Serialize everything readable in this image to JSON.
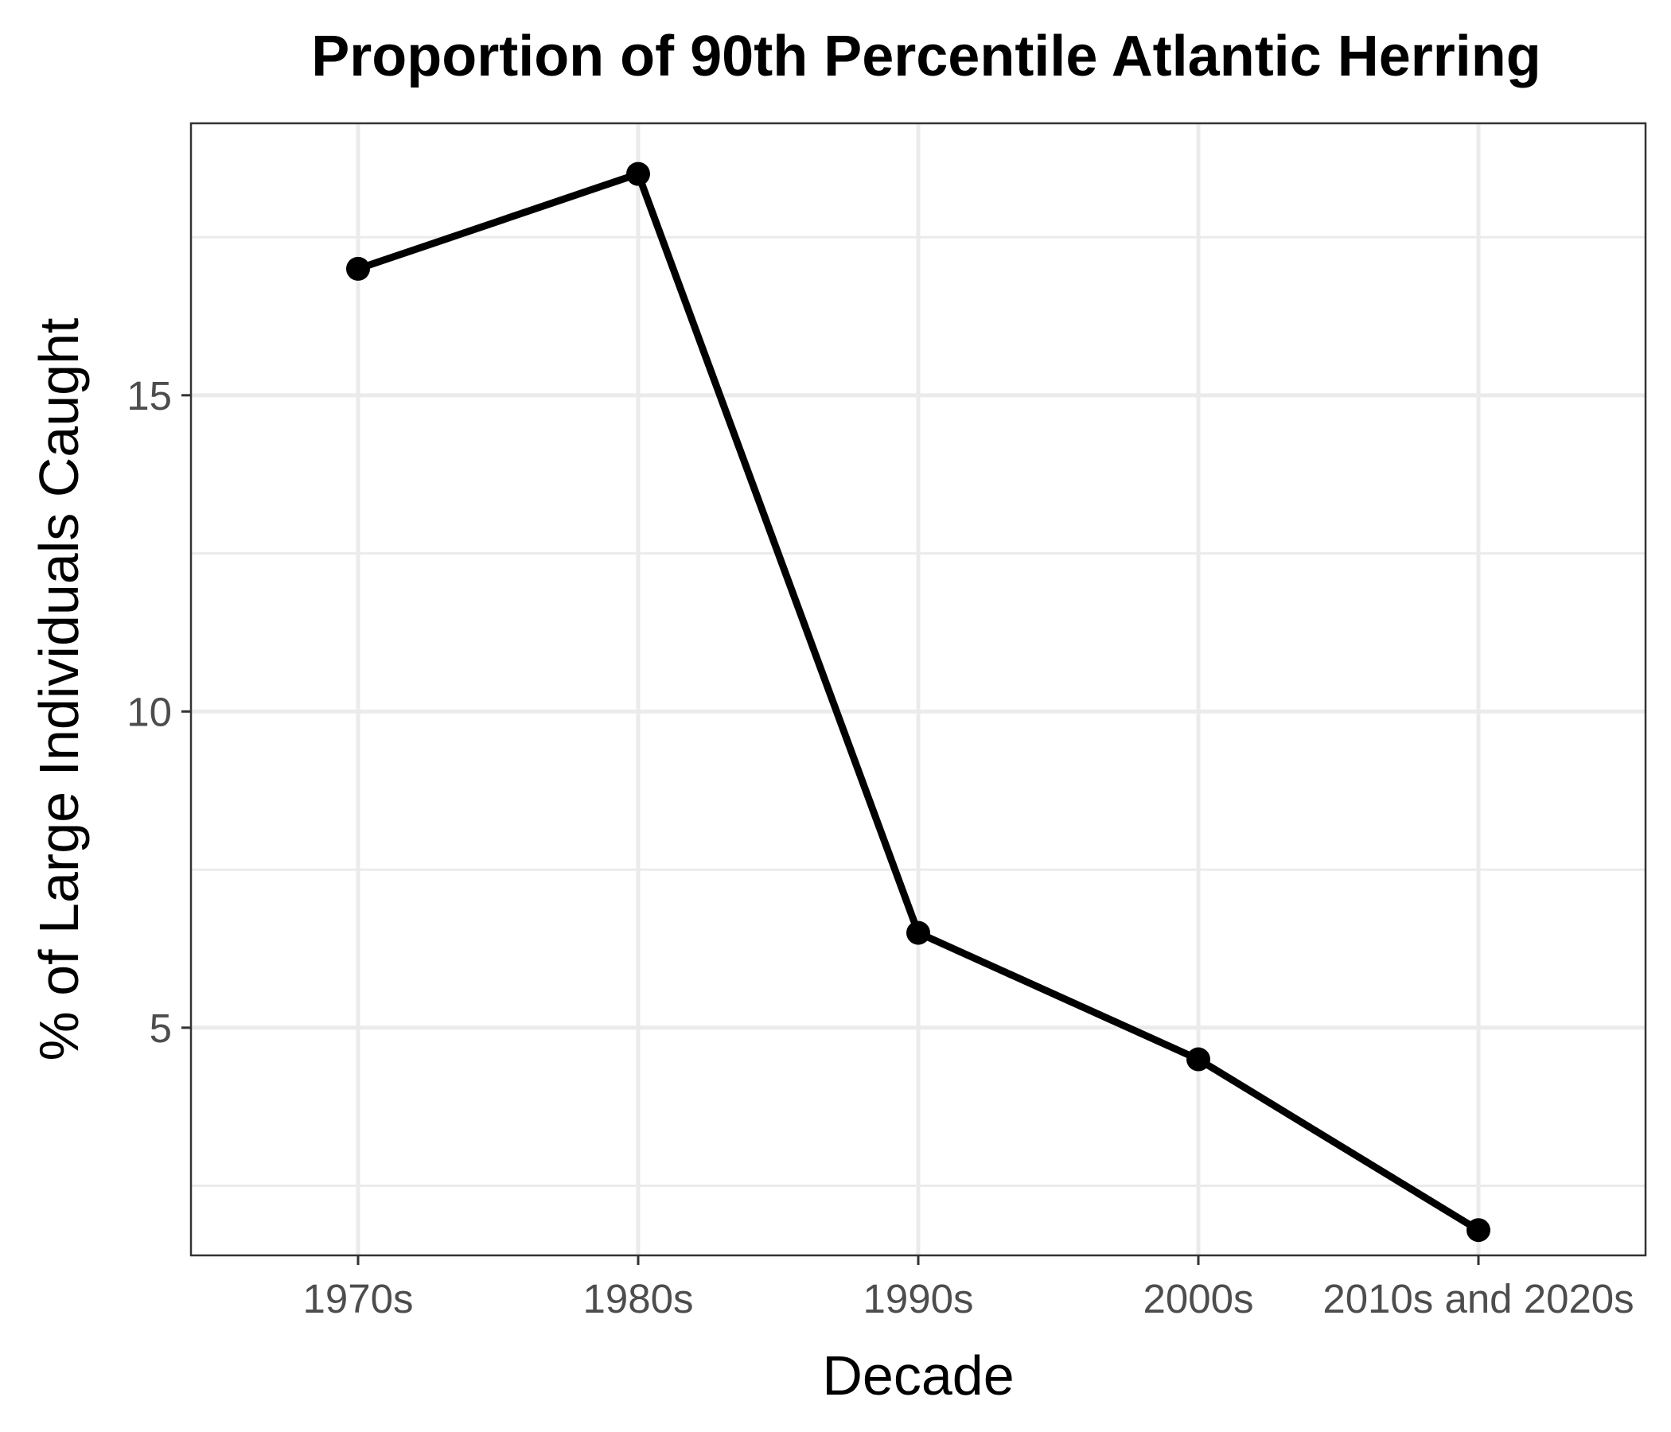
{
  "chart_data": {
    "type": "line",
    "title": "Proportion of 90th Percentile Atlantic Herring",
    "xlabel": "Decade",
    "ylabel": "% of Large Individuals Caught",
    "categories": [
      "1970s",
      "1980s",
      "1990s",
      "2000s",
      "2010s and 2020s"
    ],
    "series": [
      {
        "values": [
          17.0,
          18.5,
          6.5,
          4.5,
          1.8
        ]
      }
    ],
    "ylim": [
      1.4,
      19.3
    ],
    "yticks": [
      5,
      10,
      15
    ],
    "grid": true,
    "colors": {
      "line": "#000000",
      "grid": "#ebebeb",
      "tick_text": "#4d4d4d"
    }
  }
}
